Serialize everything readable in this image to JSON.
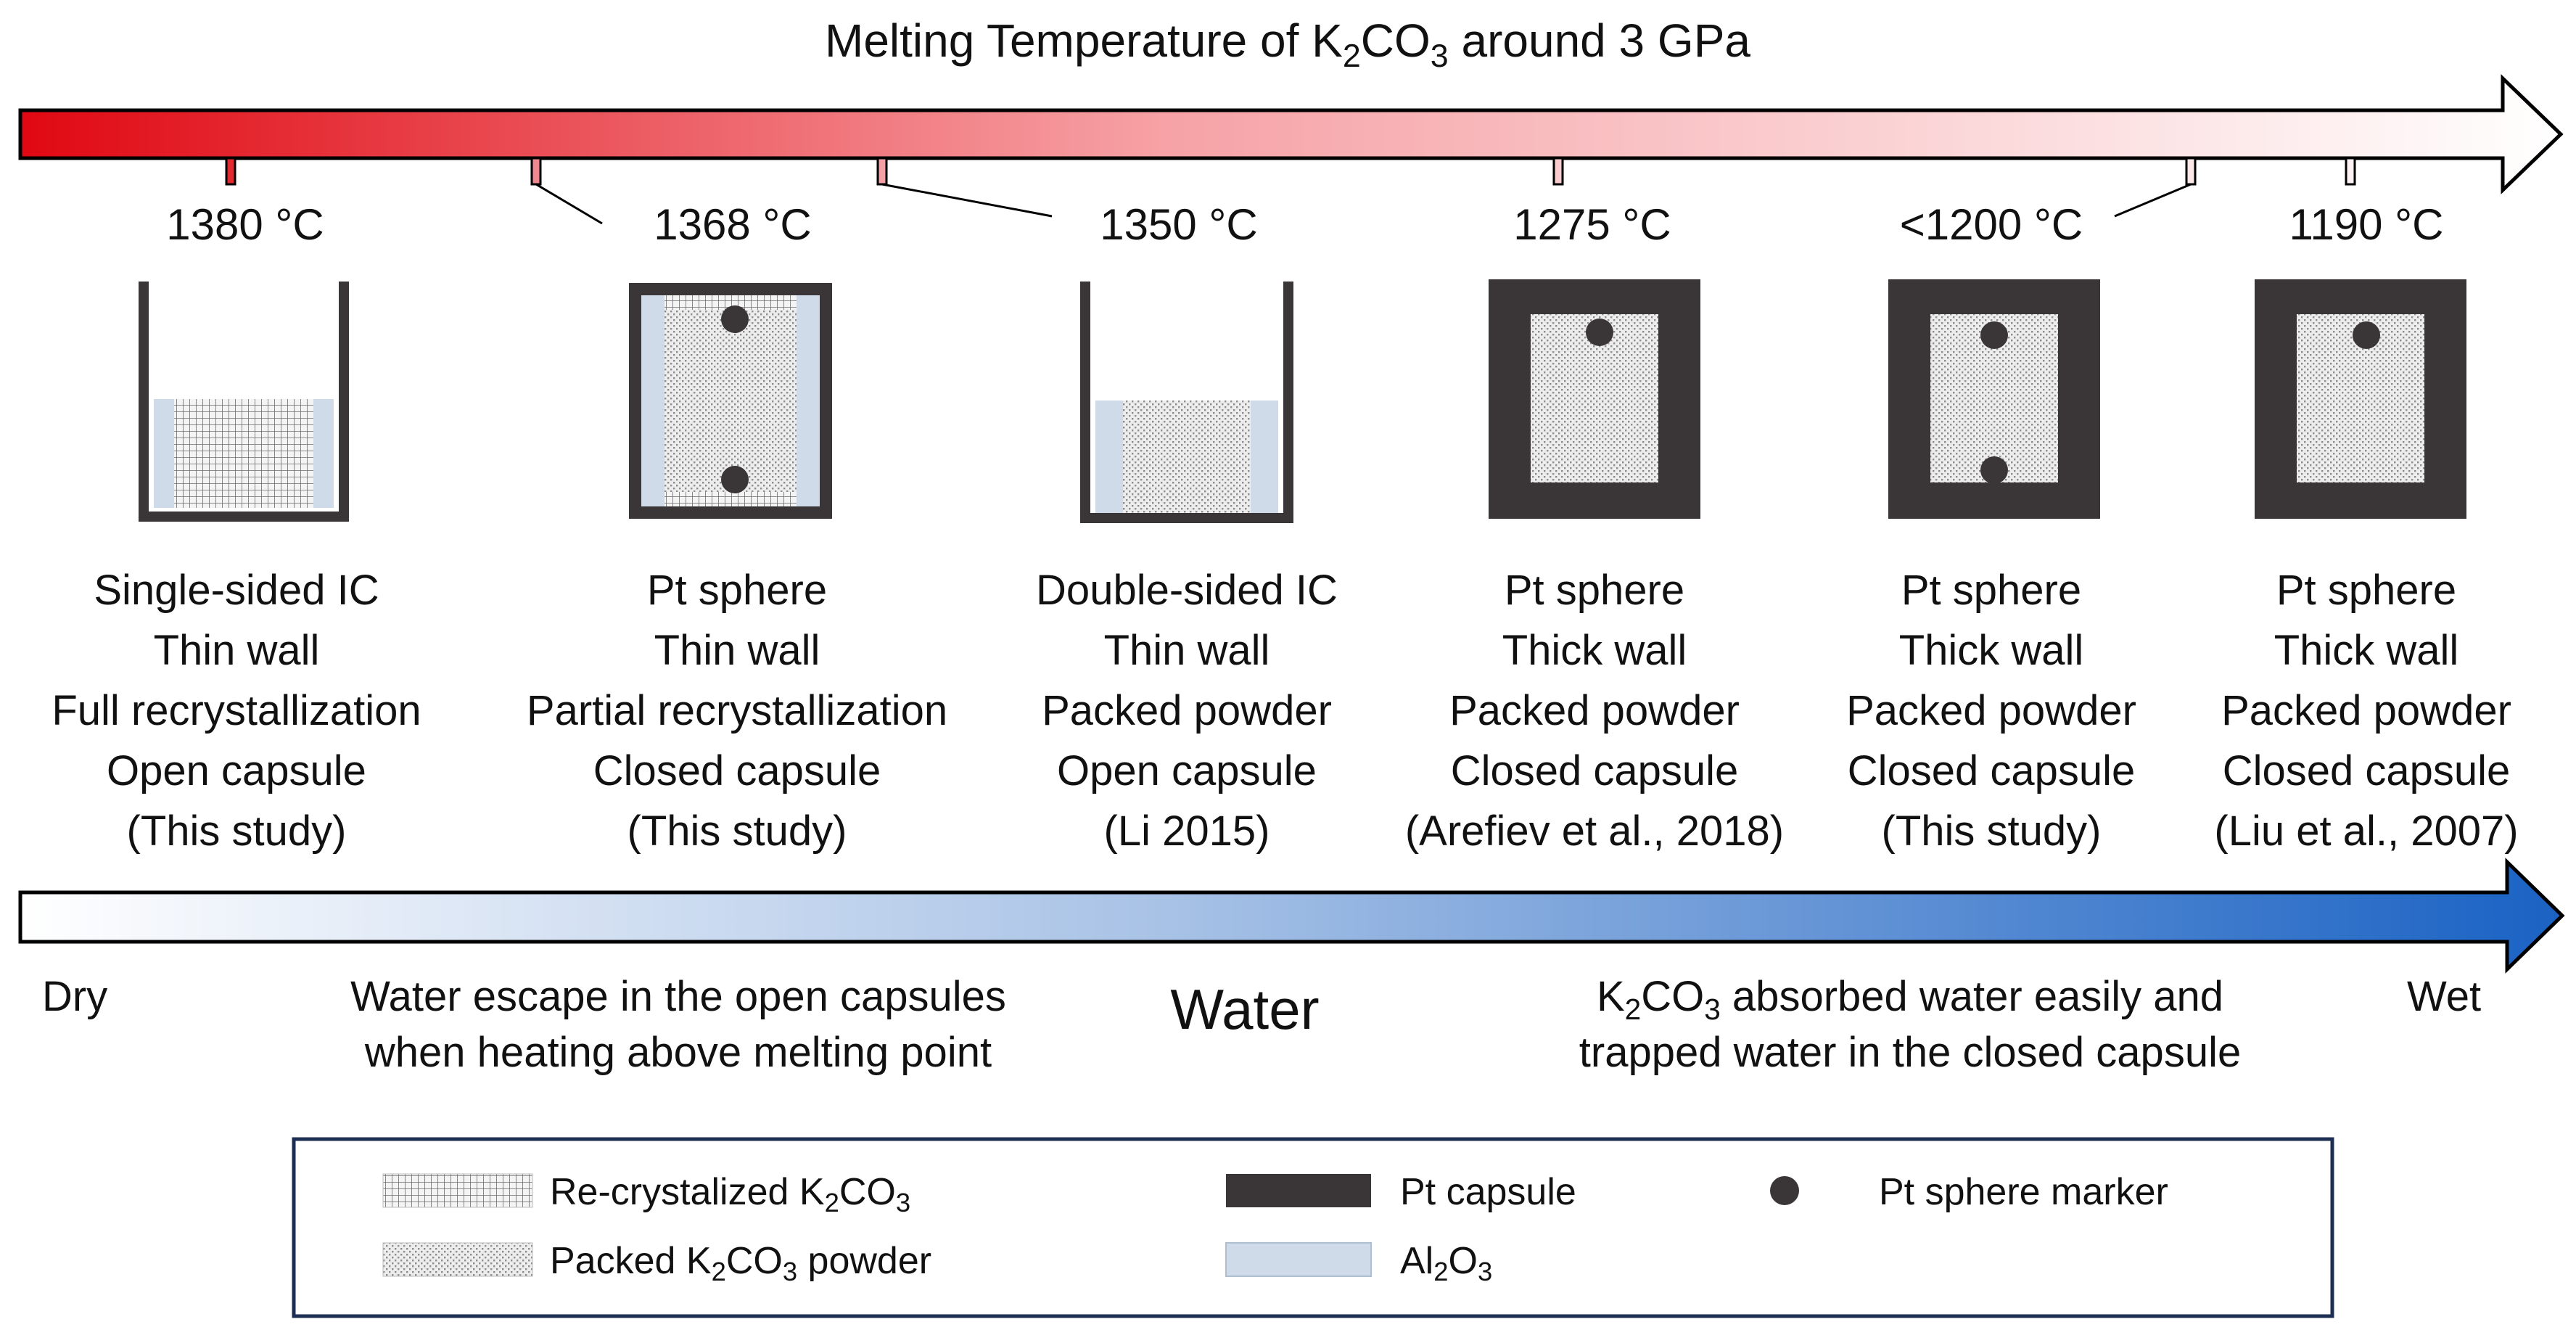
{
  "title": {
    "pre": "Melting Temperature of K",
    "sub1": "2",
    "mid": "CO",
    "sub2": "3",
    "post": " around 3 GPa"
  },
  "colors": {
    "hot": "#e00812",
    "warm_end": "#ffffff",
    "dry_start": "#ffffff",
    "wet": "#1a62c4",
    "pt": "#3a3536",
    "al2o3": "#cfdbe8",
    "outline": "#000000",
    "legend_border": "#1c2f52"
  },
  "samples": [
    {
      "temp": "1380 °C",
      "capsule": "open-u",
      "fill": "recrystalized",
      "fill_level": 0.5,
      "markers": 0,
      "wall": "thin",
      "lines": [
        "Single-sided IC",
        "Thin wall",
        "Full recrystallization",
        "Open capsule",
        "(This study)"
      ]
    },
    {
      "temp": "1368 °C",
      "capsule": "closed-thin",
      "fill": "partial",
      "markers": 2,
      "wall": "thin",
      "lines": [
        "Pt sphere",
        "Thin wall",
        "Partial recrystallization",
        "Closed capsule",
        "(This study)"
      ]
    },
    {
      "temp": "1350 °C",
      "capsule": "open-u",
      "fill": "packed",
      "fill_level": 0.5,
      "markers": 0,
      "wall": "thin",
      "lines": [
        "Double-sided IC",
        "Thin wall",
        "Packed powder",
        "Open capsule",
        "(Li 2015)"
      ]
    },
    {
      "temp": "1275 °C",
      "capsule": "closed-thick",
      "fill": "packed",
      "markers": 1,
      "wall": "thick",
      "lines": [
        "Pt sphere",
        "Thick wall",
        "Packed powder",
        "Closed capsule",
        "(Arefiev et al., 2018)"
      ]
    },
    {
      "temp": "<1200 °C",
      "capsule": "closed-thick",
      "fill": "packed",
      "markers": 2,
      "wall": "thick",
      "lines": [
        "Pt sphere",
        "Thick wall",
        "Packed powder",
        "Closed capsule",
        "(This study)"
      ]
    },
    {
      "temp": "1190 °C",
      "capsule": "closed-thick",
      "fill": "packed",
      "markers": 1,
      "wall": "thick",
      "lines": [
        "Pt sphere",
        "Thick wall",
        "Packed powder",
        "Closed capsule",
        "(Liu et al., 2007)"
      ]
    }
  ],
  "water": {
    "dry": "Dry",
    "wet": "Wet",
    "center": "Water",
    "left_note": [
      "Water escape in the open capsules",
      "when heating above melting point"
    ],
    "right_note": {
      "l1_pre": "K",
      "l1_sub1": "2",
      "l1_mid": "CO",
      "l1_sub2": "3",
      "l1_post": " absorbed water easily and",
      "l2": "trapped water in the closed capsule"
    }
  },
  "legend": {
    "recrystalized": {
      "pre": "Re-crystalized K",
      "sub1": "2",
      "mid": "CO",
      "sub2": "3"
    },
    "packed": {
      "pre": "Packed K",
      "sub1": "2",
      "mid": "CO",
      "sub2": "3",
      "post": " powder"
    },
    "pt_capsule": "Pt capsule",
    "al2o3": {
      "pre": "Al",
      "sub1": "2",
      "mid": "O",
      "sub2": "3"
    },
    "pt_sphere": "Pt sphere marker"
  }
}
